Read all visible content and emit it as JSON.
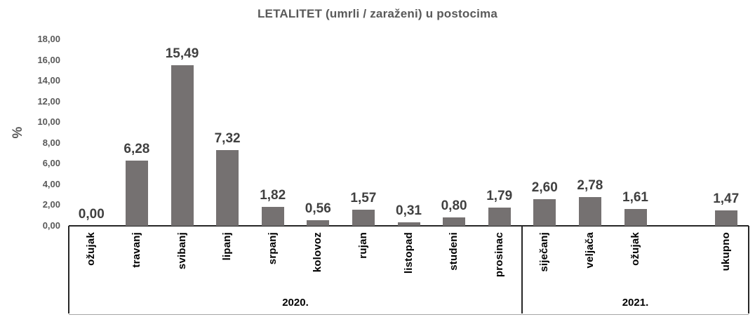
{
  "chart_data": {
    "type": "bar",
    "title": "LETALITET (umrli / zaraženi) u postocima",
    "ylabel": "%",
    "xlabel": "",
    "ylim": [
      0,
      18
    ],
    "ytick_step": 2,
    "ytick_labels": [
      "0,00",
      "2,00",
      "4,00",
      "6,00",
      "8,00",
      "10,00",
      "12,00",
      "14,00",
      "16,00",
      "18,00"
    ],
    "bar_color": "#757171",
    "grid": false,
    "legend": false,
    "groups": [
      {
        "label": "2020.",
        "categories": [
          "ožujak",
          "travanj",
          "svibanj",
          "lipanj",
          "srpanj",
          "kolovoz",
          "rujan",
          "listopad",
          "studeni",
          "prosinac"
        ],
        "values": [
          0.0,
          6.28,
          15.49,
          7.32,
          1.82,
          0.56,
          1.57,
          0.31,
          0.8,
          1.79
        ],
        "value_labels": [
          "0,00",
          "6,28",
          "15,49",
          "7,32",
          "1,82",
          "0,56",
          "1,57",
          "0,31",
          "0,80",
          "1,79"
        ]
      },
      {
        "label": "2021.",
        "categories": [
          "siječanj",
          "veljača",
          "ožujak",
          "",
          "ukupno"
        ],
        "values": [
          2.6,
          2.78,
          1.61,
          null,
          1.47
        ],
        "value_labels": [
          "2,60",
          "2,78",
          "1,61",
          "",
          "1,47"
        ]
      }
    ]
  }
}
